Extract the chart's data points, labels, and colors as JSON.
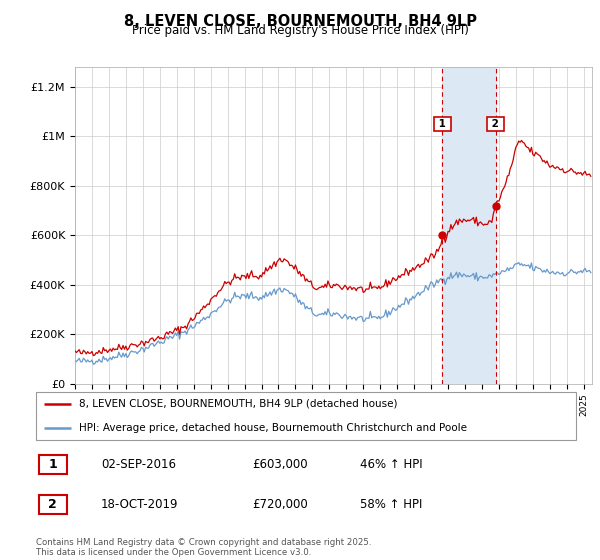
{
  "title": "8, LEVEN CLOSE, BOURNEMOUTH, BH4 9LP",
  "subtitle": "Price paid vs. HM Land Registry's House Price Index (HPI)",
  "ylabel_ticks": [
    "£0",
    "£200K",
    "£400K",
    "£600K",
    "£800K",
    "£1M",
    "£1.2M"
  ],
  "ytick_values": [
    0,
    200000,
    400000,
    600000,
    800000,
    1000000,
    1200000
  ],
  "ylim": [
    0,
    1280000
  ],
  "xlim_start": 1995.0,
  "xlim_end": 2025.5,
  "red_line_color": "#cc0000",
  "blue_line_color": "#6699cc",
  "shade_color": "#dce9f5",
  "grid_color": "#cccccc",
  "vline1_x": 2016.67,
  "vline2_x": 2019.8,
  "ann1_x": 2016.67,
  "ann1_y": 603000,
  "ann1_label": "1",
  "ann2_x": 2019.8,
  "ann2_y": 720000,
  "ann2_label": "2",
  "legend_line1": "8, LEVEN CLOSE, BOURNEMOUTH, BH4 9LP (detached house)",
  "legend_line2": "HPI: Average price, detached house, Bournemouth Christchurch and Poole",
  "table_row1": [
    "1",
    "02-SEP-2016",
    "£603,000",
    "46% ↑ HPI"
  ],
  "table_row2": [
    "2",
    "18-OCT-2019",
    "£720,000",
    "58% ↑ HPI"
  ],
  "footer": "Contains HM Land Registry data © Crown copyright and database right 2025.\nThis data is licensed under the Open Government Licence v3.0."
}
